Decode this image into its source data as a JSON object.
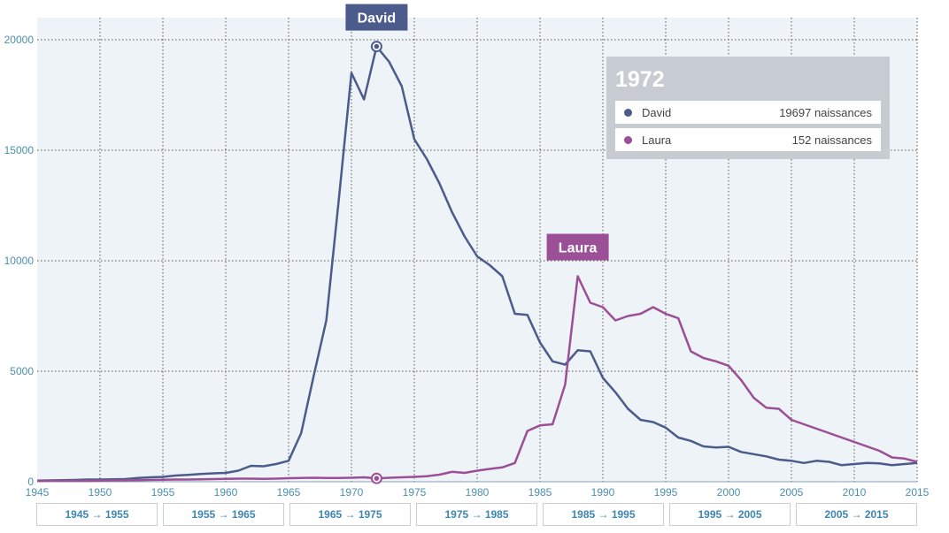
{
  "chart_data": {
    "type": "line",
    "x": [
      1945,
      1946,
      1947,
      1948,
      1949,
      1950,
      1951,
      1952,
      1953,
      1954,
      1955,
      1956,
      1957,
      1958,
      1959,
      1960,
      1961,
      1962,
      1963,
      1964,
      1965,
      1966,
      1967,
      1968,
      1969,
      1970,
      1971,
      1972,
      1973,
      1974,
      1975,
      1976,
      1977,
      1978,
      1979,
      1980,
      1981,
      1982,
      1983,
      1984,
      1985,
      1986,
      1987,
      1988,
      1989,
      1990,
      1991,
      1992,
      1993,
      1994,
      1995,
      1996,
      1997,
      1998,
      1999,
      2000,
      2001,
      2002,
      2003,
      2004,
      2005,
      2006,
      2007,
      2008,
      2009,
      2010,
      2011,
      2012,
      2013,
      2014,
      2015
    ],
    "series": [
      {
        "name": "David",
        "color": "#4b5b8c",
        "values": [
          50,
          60,
          70,
          80,
          100,
          100,
          110,
          120,
          170,
          200,
          220,
          280,
          310,
          350,
          380,
          400,
          500,
          720,
          700,
          800,
          950,
          2200,
          4800,
          7300,
          12800,
          18500,
          17300,
          19697,
          19000,
          17900,
          15500,
          14600,
          13500,
          12200,
          11100,
          10200,
          9800,
          9300,
          7600,
          7550,
          6300,
          5450,
          5300,
          5950,
          5900,
          4700,
          4050,
          3300,
          2800,
          2700,
          2450,
          2000,
          1850,
          1600,
          1550,
          1580,
          1350,
          1250,
          1150,
          1000,
          950,
          850,
          950,
          900,
          750,
          800,
          850,
          830,
          750,
          800,
          850
        ]
      },
      {
        "name": "Laura",
        "color": "#9b4f96",
        "values": [
          30,
          40,
          40,
          40,
          40,
          50,
          60,
          60,
          70,
          80,
          90,
          100,
          100,
          110,
          120,
          130,
          140,
          140,
          130,
          140,
          160,
          170,
          180,
          170,
          170,
          180,
          200,
          152,
          180,
          200,
          220,
          250,
          320,
          450,
          400,
          500,
          580,
          650,
          850,
          2300,
          2550,
          2600,
          4400,
          9300,
          8100,
          7900,
          7300,
          7500,
          7600,
          7900,
          7600,
          7400,
          5900,
          5600,
          5450,
          5250,
          4600,
          3800,
          3350,
          3300,
          2800,
          2600,
          2400,
          2200,
          2000,
          1800,
          1600,
          1400,
          1100,
          1050,
          900
        ]
      }
    ],
    "xlim": [
      1945,
      2015
    ],
    "ylim": [
      0,
      21000
    ],
    "x_ticks": [
      1945,
      1950,
      1955,
      1960,
      1965,
      1970,
      1975,
      1980,
      1985,
      1990,
      1995,
      2000,
      2005,
      2010,
      2015
    ],
    "y_ticks": [
      0,
      5000,
      10000,
      15000,
      20000
    ],
    "grid": true,
    "highlight_year": 1972,
    "series_labels": [
      {
        "text": "David",
        "year": 1972,
        "value": 19697
      },
      {
        "text": "Laura",
        "year": 1988,
        "value": 9300
      }
    ]
  },
  "tooltip": {
    "year": "1972",
    "rows": [
      {
        "name": "David",
        "value": "19697 naissances",
        "color": "#4b5b8c"
      },
      {
        "name": "Laura",
        "value": "152 naissances",
        "color": "#9b4f96"
      }
    ]
  },
  "range_buttons": [
    "1945 → 1955",
    "1955 → 1965",
    "1965 → 1975",
    "1975 → 1985",
    "1985 → 1995",
    "1995 → 2005",
    "2005 → 2015"
  ]
}
